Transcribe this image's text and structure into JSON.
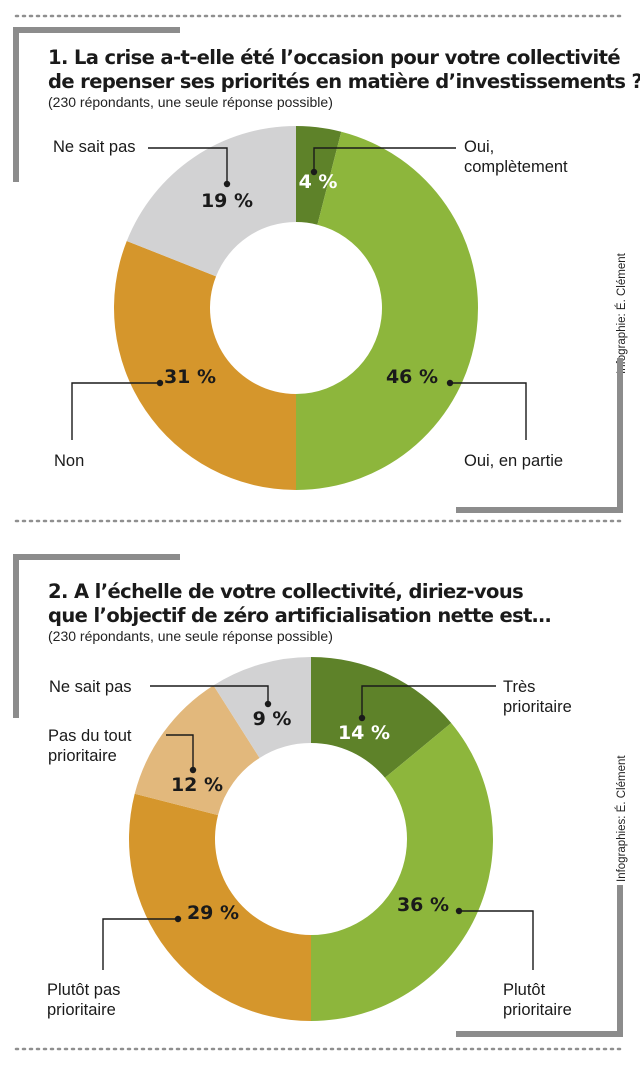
{
  "chart_data": [
    {
      "type": "pie",
      "title": "1. La crise a-t-elle été l’occasion pour votre collectivité de repenser ses priorités en matière d’investissements ?",
      "title_lines": [
        "1. La crise a-t-elle été l’occasion pour votre collectivité",
        "de repenser ses priorités en matière d’investissements ?"
      ],
      "subtitle": "(230 répondants, une seule réponse possible)",
      "credit": "Infographie: É. Clément",
      "slices": [
        {
          "name": "Oui, complètement",
          "label_lines": [
            "Oui,",
            "complètement"
          ],
          "value": 4,
          "pct_label": "4 %",
          "color": "#5e8229",
          "pct_color": "#ffffff"
        },
        {
          "name": "Oui, en partie",
          "label_lines": [
            "Oui, en partie"
          ],
          "value": 46,
          "pct_label": "46 %",
          "color": "#8db63c",
          "pct_color": "#1a1a1a"
        },
        {
          "name": "Non",
          "label_lines": [
            "Non"
          ],
          "value": 31,
          "pct_label": "31 %",
          "color": "#d5962c",
          "pct_color": "#1a1a1a"
        },
        {
          "name": "Ne sait pas",
          "label_lines": [
            "Ne sait pas"
          ],
          "value": 19,
          "pct_label": "19 %",
          "color": "#d2d2d3",
          "pct_color": "#1a1a1a"
        }
      ]
    },
    {
      "type": "pie",
      "title": "2. A l’échelle de votre collectivité, diriez-vous que l’objectif de zéro artificialisation nette est…",
      "title_lines": [
        "2. A l’échelle de votre collectivité, diriez-vous",
        "que l’objectif de zéro artificialisation nette est…"
      ],
      "subtitle": "(230 répondants, une seule réponse possible)",
      "credit": "Infographies: É. Clément",
      "slices": [
        {
          "name": "Très prioritaire",
          "label_lines": [
            "Très",
            "prioritaire"
          ],
          "value": 14,
          "pct_label": "14 %",
          "color": "#5e8229",
          "pct_color": "#ffffff"
        },
        {
          "name": "Plutôt prioritaire",
          "label_lines": [
            "Plutôt",
            "prioritaire"
          ],
          "value": 36,
          "pct_label": "36 %",
          "color": "#8db63c",
          "pct_color": "#1a1a1a"
        },
        {
          "name": "Plutôt pas prioritaire",
          "label_lines": [
            "Plutôt pas",
            "prioritaire"
          ],
          "value": 29,
          "pct_label": "29 %",
          "color": "#d5962c",
          "pct_color": "#1a1a1a"
        },
        {
          "name": "Pas du tout prioritaire",
          "label_lines": [
            "Pas du tout",
            "prioritaire"
          ],
          "value": 12,
          "pct_label": "12 %",
          "color": "#e2b87c",
          "pct_color": "#1a1a1a"
        },
        {
          "name": "Ne sait pas",
          "label_lines": [
            "Ne sait pas"
          ],
          "value": 9,
          "pct_label": "9 %",
          "color": "#d2d2d3",
          "pct_color": "#1a1a1a"
        }
      ]
    }
  ]
}
